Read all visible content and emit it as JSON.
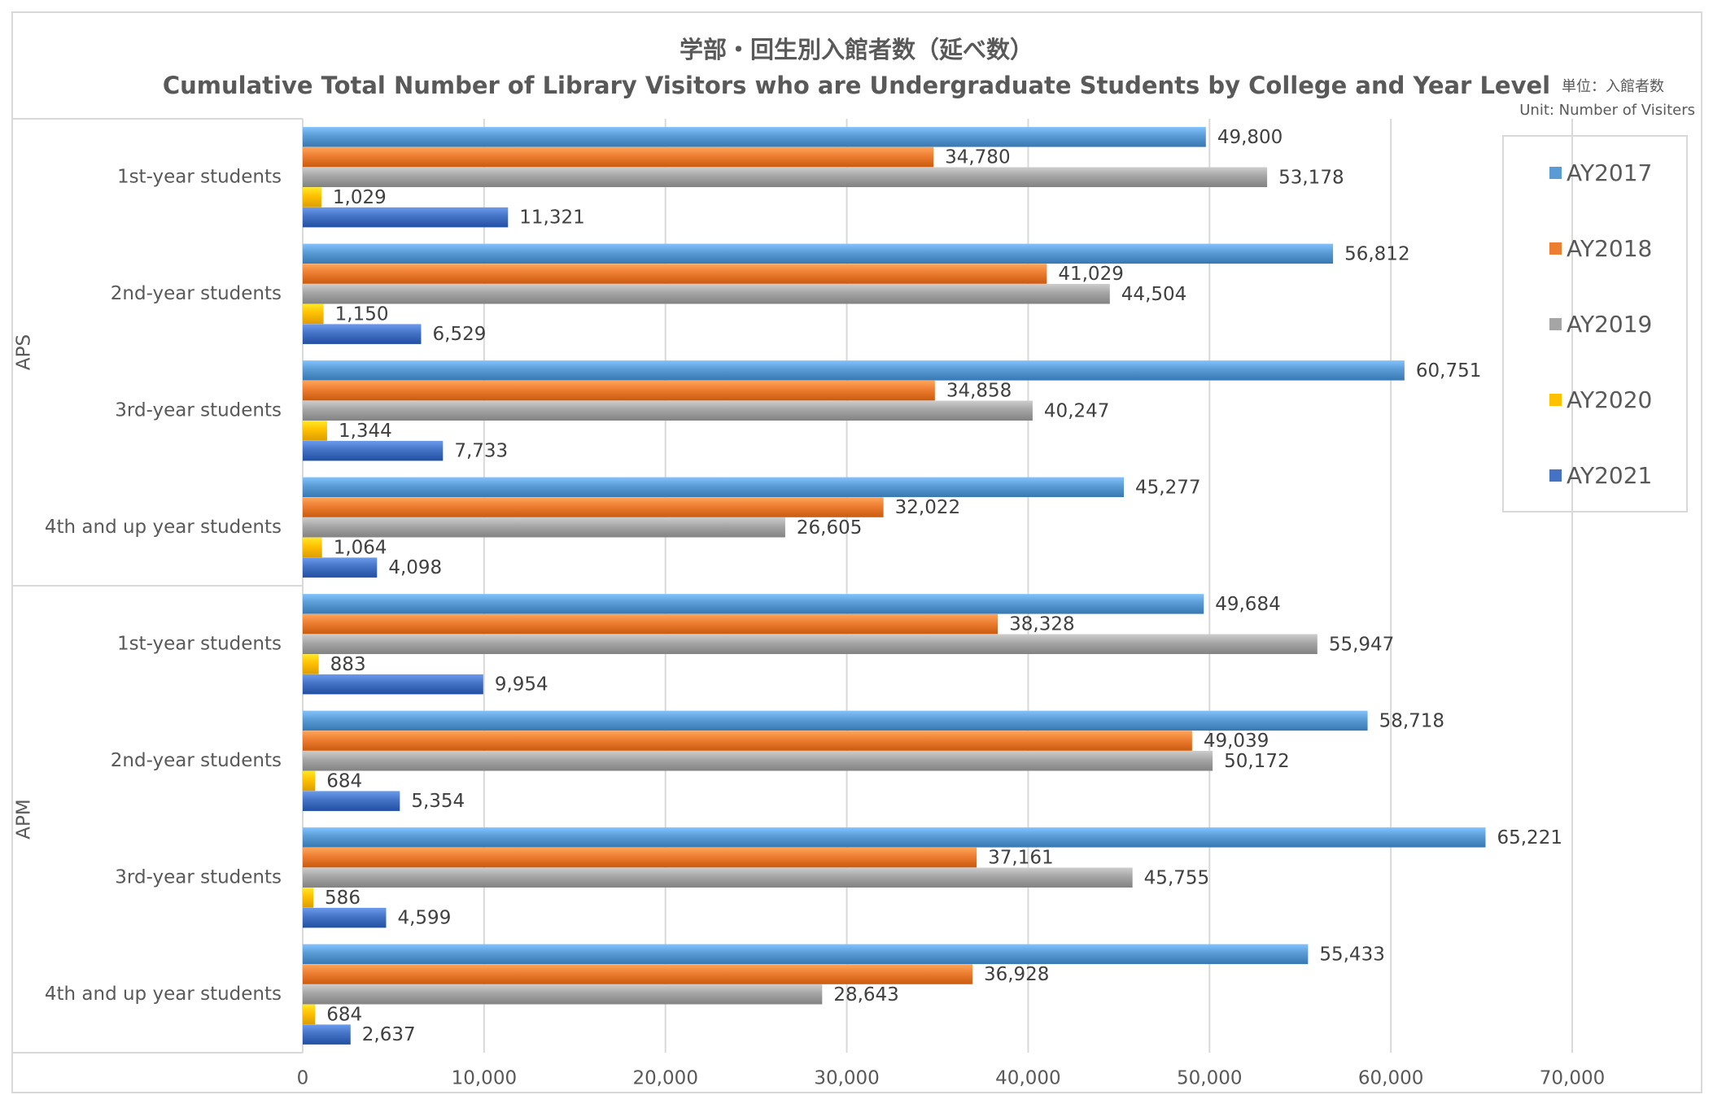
{
  "title_ja": "学部・回生別入館者数（延べ数）",
  "title_en": "Cumulative Total Number of Library Visitors who are Undergraduate Students by College and Year Level",
  "unit_ja": "単位：入館者数",
  "unit_en": "Unit: Number of Visiters",
  "chart_data": {
    "type": "bar",
    "orientation": "horizontal",
    "title": "学部・回生別入館者数（延べ数） / Cumulative Total Number of Library Visitors who are Undergraduate Students by College and Year Level",
    "xlim": [
      0,
      70000
    ],
    "x_ticks": [
      0,
      10000,
      20000,
      30000,
      40000,
      50000,
      60000,
      70000
    ],
    "x_tick_labels": [
      "0",
      "10,000",
      "20,000",
      "30,000",
      "40,000",
      "50,000",
      "60,000",
      "70,000"
    ],
    "grid": true,
    "legend_position": "right",
    "groups": [
      {
        "name": "APS",
        "categories": [
          "1st-year students",
          "2nd-year students",
          "3rd-year students",
          "4th and up year students"
        ]
      },
      {
        "name": "APM",
        "categories": [
          "1st-year students",
          "2nd-year students",
          "3rd-year students",
          "4th and up year students"
        ]
      }
    ],
    "series": [
      {
        "name": "AY2017",
        "color": "#5b9bd5",
        "values": [
          49800,
          56812,
          60751,
          45277,
          49684,
          58718,
          65221,
          55433
        ]
      },
      {
        "name": "AY2018",
        "color": "#ed7d31",
        "values": [
          34780,
          41029,
          34858,
          32022,
          38328,
          49039,
          37161,
          36928
        ]
      },
      {
        "name": "AY2019",
        "color": "#a5a5a5",
        "values": [
          53178,
          44504,
          40247,
          26605,
          55947,
          50172,
          45755,
          28643
        ]
      },
      {
        "name": "AY2020",
        "color": "#ffc000",
        "values": [
          1029,
          1150,
          1344,
          1064,
          883,
          684,
          586,
          684
        ]
      },
      {
        "name": "AY2021",
        "color": "#4472c4",
        "values": [
          11321,
          6529,
          7733,
          4098,
          9954,
          5354,
          4599,
          2637
        ]
      }
    ]
  }
}
